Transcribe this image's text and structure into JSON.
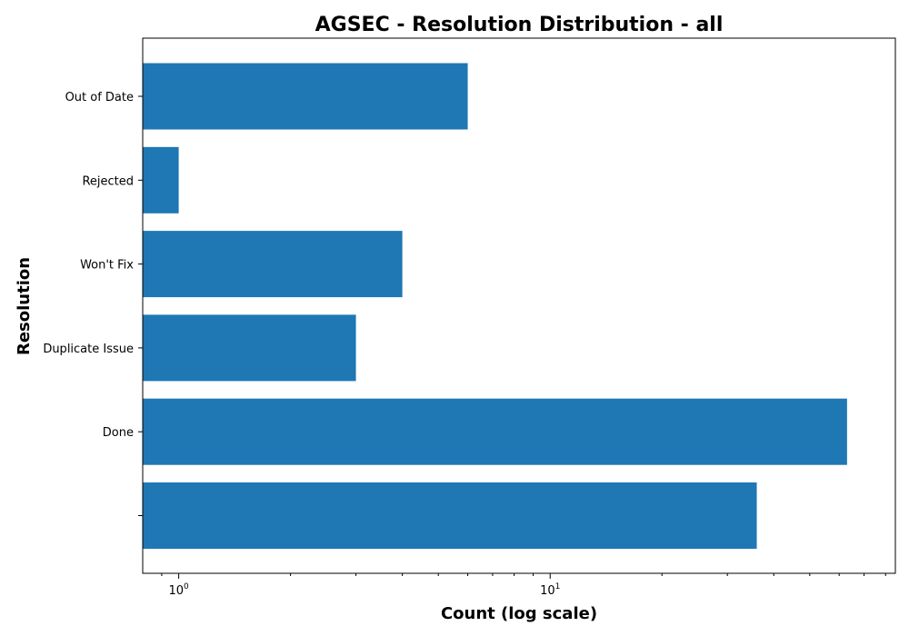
{
  "chart_data": {
    "type": "bar",
    "orientation": "horizontal",
    "title": "AGSEC - Resolution Distribution - all",
    "xlabel": "Count (log scale)",
    "ylabel": "Resolution",
    "xscale": "log",
    "xlim": [
      0.8,
      85
    ],
    "categories": [
      "Out of Date",
      "Rejected",
      "Won't Fix",
      "Duplicate Issue",
      "Done",
      ""
    ],
    "values": [
      6,
      1,
      4,
      3,
      63,
      36
    ],
    "x_ticks": [
      {
        "value": 1,
        "base": "10",
        "exp": "0"
      },
      {
        "value": 10,
        "base": "10",
        "exp": "1"
      }
    ],
    "bar_color": "#1f77b4",
    "grid": false,
    "legend": "none"
  }
}
